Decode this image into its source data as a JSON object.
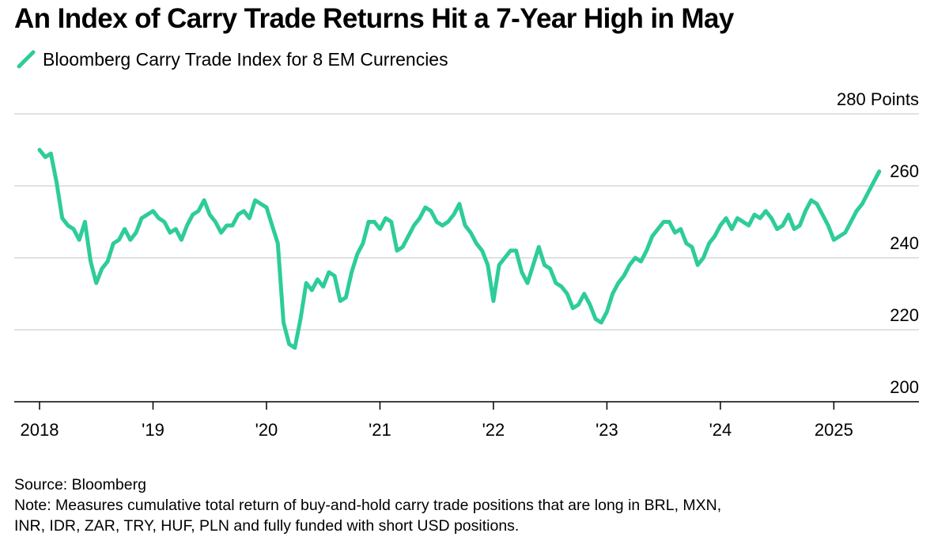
{
  "title": "An Index of Carry Trade Returns Hit a 7-Year High in May",
  "legend": {
    "label": "Bloomberg Carry Trade Index for 8 EM Currencies",
    "color": "#2ecc9a"
  },
  "footer": {
    "source": "Source: Bloomberg",
    "note_line1": "Note: Measures cumulative total return of buy-and-hold carry trade positions that are long in BRL, MXN,",
    "note_line2": "INR, IDR, ZAR, TRY, HUF, PLN and fully funded with short USD positions."
  },
  "chart_data": {
    "type": "line",
    "title": "An Index of Carry Trade Returns Hit a 7-Year High in May",
    "ylabel": "Points",
    "y_unit_label": "280 Points",
    "ylim": [
      200,
      280
    ],
    "yticks": [
      200,
      220,
      240,
      260,
      280
    ],
    "ytick_labels": [
      "200",
      "220",
      "240",
      "260",
      "280 Points"
    ],
    "grid": true,
    "xlim": [
      2018.0,
      2025.75
    ],
    "xticks": [
      2018,
      2019,
      2020,
      2021,
      2022,
      2023,
      2024,
      2025
    ],
    "xtick_labels": [
      "2018",
      "'19",
      "'20",
      "'21",
      "'22",
      "'23",
      "'24",
      "2025"
    ],
    "series": [
      {
        "name": "Bloomberg Carry Trade Index for 8 EM Currencies",
        "color": "#2ecc9a",
        "x": [
          2018.0,
          2018.05,
          2018.1,
          2018.15,
          2018.2,
          2018.25,
          2018.3,
          2018.35,
          2018.4,
          2018.45,
          2018.5,
          2018.55,
          2018.6,
          2018.65,
          2018.7,
          2018.75,
          2018.8,
          2018.85,
          2018.9,
          2018.95,
          2019.0,
          2019.05,
          2019.1,
          2019.15,
          2019.2,
          2019.25,
          2019.3,
          2019.35,
          2019.4,
          2019.45,
          2019.5,
          2019.55,
          2019.6,
          2019.65,
          2019.7,
          2019.75,
          2019.8,
          2019.85,
          2019.9,
          2019.95,
          2020.0,
          2020.05,
          2020.1,
          2020.15,
          2020.2,
          2020.25,
          2020.3,
          2020.35,
          2020.4,
          2020.45,
          2020.5,
          2020.55,
          2020.6,
          2020.65,
          2020.7,
          2020.75,
          2020.8,
          2020.85,
          2020.9,
          2020.95,
          2021.0,
          2021.05,
          2021.1,
          2021.15,
          2021.2,
          2021.25,
          2021.3,
          2021.35,
          2021.4,
          2021.45,
          2021.5,
          2021.55,
          2021.6,
          2021.65,
          2021.7,
          2021.75,
          2021.8,
          2021.85,
          2021.9,
          2021.95,
          2022.0,
          2022.05,
          2022.1,
          2022.15,
          2022.2,
          2022.25,
          2022.3,
          2022.35,
          2022.4,
          2022.45,
          2022.5,
          2022.55,
          2022.6,
          2022.65,
          2022.7,
          2022.75,
          2022.8,
          2022.85,
          2022.9,
          2022.95,
          2023.0,
          2023.05,
          2023.1,
          2023.15,
          2023.2,
          2023.25,
          2023.3,
          2023.35,
          2023.4,
          2023.45,
          2023.5,
          2023.55,
          2023.6,
          2023.65,
          2023.7,
          2023.75,
          2023.8,
          2023.85,
          2023.9,
          2023.95,
          2024.0,
          2024.05,
          2024.1,
          2024.15,
          2024.2,
          2024.25,
          2024.3,
          2024.35,
          2024.4,
          2024.45,
          2024.5,
          2024.55,
          2024.6,
          2024.65,
          2024.7,
          2024.75,
          2024.8,
          2024.85,
          2024.9,
          2024.95,
          2025.0,
          2025.05,
          2025.1,
          2025.15,
          2025.2,
          2025.25,
          2025.3,
          2025.35,
          2025.4
        ],
        "values": [
          270,
          268,
          269,
          261,
          251,
          249,
          248,
          245,
          250,
          239,
          233,
          237,
          239,
          244,
          245,
          248,
          245,
          247,
          251,
          252,
          253,
          251,
          250,
          247,
          248,
          245,
          249,
          252,
          253,
          256,
          252,
          250,
          247,
          249,
          249,
          252,
          253,
          251,
          256,
          255,
          254,
          249,
          244,
          222,
          216,
          215,
          223,
          233,
          231,
          234,
          232,
          236,
          235,
          228,
          229,
          236,
          241,
          244,
          250,
          250,
          248,
          251,
          250,
          242,
          243,
          246,
          249,
          251,
          254,
          253,
          250,
          249,
          250,
          252,
          255,
          249,
          247,
          244,
          242,
          238,
          228,
          238,
          240,
          242,
          242,
          236,
          233,
          238,
          243,
          238,
          237,
          233,
          232,
          230,
          226,
          227,
          230,
          227,
          223,
          222,
          225,
          230,
          233,
          235,
          238,
          240,
          239,
          242,
          246,
          248,
          250,
          250,
          247,
          248,
          244,
          243,
          238,
          240,
          244,
          246,
          249,
          251,
          248,
          251,
          250,
          249,
          252,
          251,
          253,
          251,
          248,
          249,
          252,
          248,
          249,
          253,
          256,
          255,
          252,
          249,
          245,
          246,
          247,
          250,
          253,
          255,
          258,
          261,
          264
        ]
      }
    ]
  }
}
